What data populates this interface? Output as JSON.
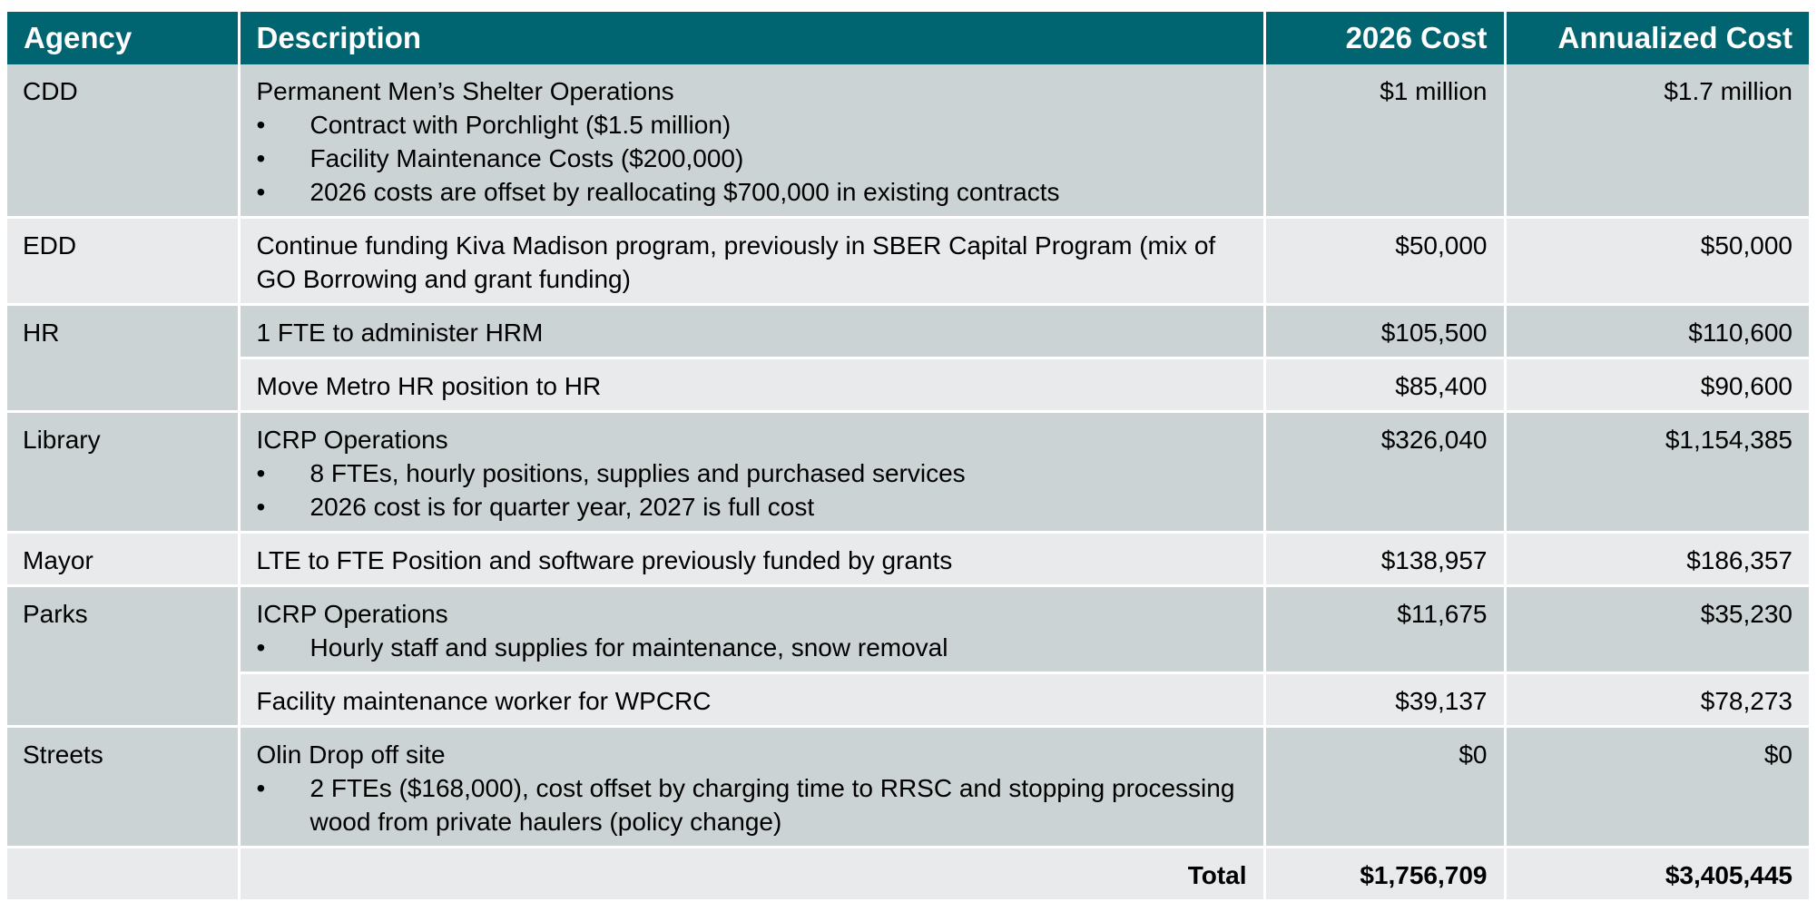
{
  "headers": {
    "agency": "Agency",
    "description": "Description",
    "cost_2026": "2026 Cost",
    "annualized": "Annualized Cost"
  },
  "bullet_glyph": "•",
  "rows": {
    "cdd": {
      "agency": "CDD",
      "title": "Permanent Men’s Shelter Operations",
      "bullets": [
        "Contract with Porchlight ($1.5 million)",
        "Facility Maintenance Costs ($200,000)",
        "2026 costs are offset by reallocating $700,000 in existing contracts"
      ],
      "cost_2026": "$1 million",
      "annualized": "$1.7 million"
    },
    "edd": {
      "agency": "EDD",
      "title": "Continue funding Kiva Madison program, previously in SBER Capital Program (mix of GO Borrowing and grant funding)",
      "cost_2026": "$50,000",
      "annualized": "$50,000"
    },
    "hr": {
      "agency": "HR",
      "items": [
        {
          "title": "1 FTE to administer HRM",
          "cost_2026": "$105,500",
          "annualized": "$110,600"
        },
        {
          "title": "Move Metro HR position to HR",
          "cost_2026": "$85,400",
          "annualized": "$90,600"
        }
      ]
    },
    "library": {
      "agency": "Library",
      "title": "ICRP Operations",
      "bullets": [
        "8 FTEs, hourly positions, supplies and purchased services",
        "2026 cost is for quarter year, 2027 is full cost"
      ],
      "cost_2026": "$326,040",
      "annualized": "$1,154,385"
    },
    "mayor": {
      "agency": "Mayor",
      "title": "LTE to FTE Position and software previously funded by grants",
      "cost_2026": "$138,957",
      "annualized": "$186,357"
    },
    "parks": {
      "agency": "Parks",
      "items": [
        {
          "title": "ICRP Operations",
          "bullets": [
            "Hourly staff and supplies for maintenance, snow removal"
          ],
          "cost_2026": "$11,675",
          "annualized": "$35,230"
        },
        {
          "title": "Facility maintenance worker for WPCRC",
          "cost_2026": "$39,137",
          "annualized": "$78,273"
        }
      ]
    },
    "streets": {
      "agency": "Streets",
      "title": "Olin Drop off site",
      "bullets": [
        "2 FTEs ($168,000), cost offset by charging time to RRSC and stopping processing wood from private haulers (policy change)"
      ],
      "cost_2026": "$0",
      "annualized": "$0"
    }
  },
  "total": {
    "label": "Total",
    "cost_2026": "$1,756,709",
    "annualized": "$3,405,445"
  },
  "colors": {
    "header_bg": "#006570",
    "band_dark": "#cbd3d5",
    "band_light": "#e8eaeb"
  }
}
